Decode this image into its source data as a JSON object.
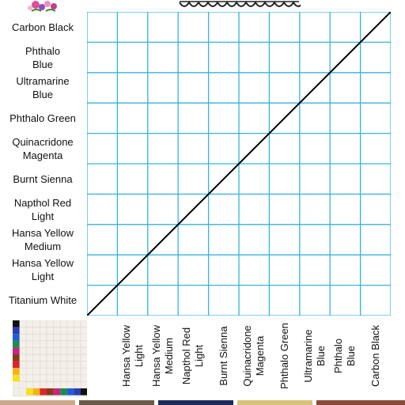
{
  "sheet": {
    "row_labels": [
      "Carbon Black",
      "Phthalo\nBlue",
      "Ultramarine\nBlue",
      "Phthalo Green",
      "Quinacridone\nMagenta",
      "Burnt Sienna",
      "Napthol Red\nLight",
      "Hansa Yellow\nMedium",
      "Hansa Yellow\nLight",
      "Titanium White"
    ],
    "column_labels": [
      "Hansa Yellow\nLight",
      "Hansa Yellow\nMedium",
      "Napthol Red\nLight",
      "Burnt Sienna",
      "Quinacridone\nMagenta",
      "Phthalo Green",
      "Ultramarine\nBlue",
      "Phthalo\nBlue",
      "Carbon Black"
    ]
  },
  "colors": {
    "grid_line": "#36b3dd",
    "diagonal": "#000000",
    "flower_pink": "#e04b9b",
    "flower_purple": "#8a4fc1",
    "thumb_swatches": [
      "#111111",
      "#2a3fb0",
      "#1f5fd6",
      "#1f8a55",
      "#c4287c",
      "#8a3a1c",
      "#d9282a",
      "#f7b21a",
      "#f4e21c",
      "#f1efe8"
    ]
  }
}
